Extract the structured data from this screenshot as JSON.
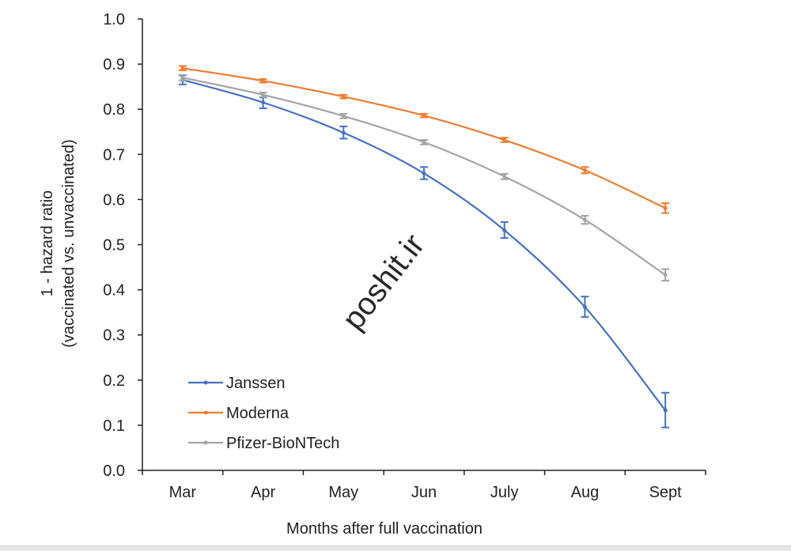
{
  "chart_data": {
    "type": "line",
    "title": "",
    "xlabel": "Months after full vaccination",
    "ylabel": [
      "1 - hazard ratio",
      "(vaccinated vs. unvaccinated)"
    ],
    "categories": [
      "Mar",
      "Apr",
      "May",
      "Jun",
      "July",
      "Aug",
      "Sept"
    ],
    "ylim": [
      0,
      1.0
    ],
    "yticks": [
      "0.0",
      "0.1",
      "0.2",
      "0.3",
      "0.4",
      "0.5",
      "0.6",
      "0.7",
      "0.8",
      "0.9",
      "1.0"
    ],
    "grid": false,
    "legend": "bottom-left",
    "smooth": true,
    "series": [
      {
        "name": "Janssen",
        "color": "#4472c4",
        "values": [
          0.865,
          0.815,
          0.748,
          0.658,
          0.532,
          0.362,
          0.133
        ],
        "err_low": [
          0.855,
          0.802,
          0.735,
          0.645,
          0.515,
          0.34,
          0.095
        ],
        "err_high": [
          0.875,
          0.826,
          0.762,
          0.672,
          0.55,
          0.385,
          0.172
        ]
      },
      {
        "name": "Moderna",
        "color": "#ed7d31",
        "values": [
          0.891,
          0.863,
          0.828,
          0.786,
          0.732,
          0.665,
          0.581
        ],
        "err_low": [
          0.886,
          0.859,
          0.824,
          0.782,
          0.727,
          0.658,
          0.57
        ],
        "err_high": [
          0.896,
          0.867,
          0.832,
          0.79,
          0.737,
          0.672,
          0.592
        ]
      },
      {
        "name": "Pfizer-BioNTech",
        "color": "#a5a5a5",
        "values": [
          0.87,
          0.832,
          0.785,
          0.727,
          0.651,
          0.555,
          0.433
        ],
        "err_low": [
          0.864,
          0.827,
          0.78,
          0.722,
          0.645,
          0.546,
          0.42
        ],
        "err_high": [
          0.876,
          0.837,
          0.79,
          0.732,
          0.657,
          0.564,
          0.446
        ]
      }
    ]
  },
  "watermark": "poshit.ir"
}
